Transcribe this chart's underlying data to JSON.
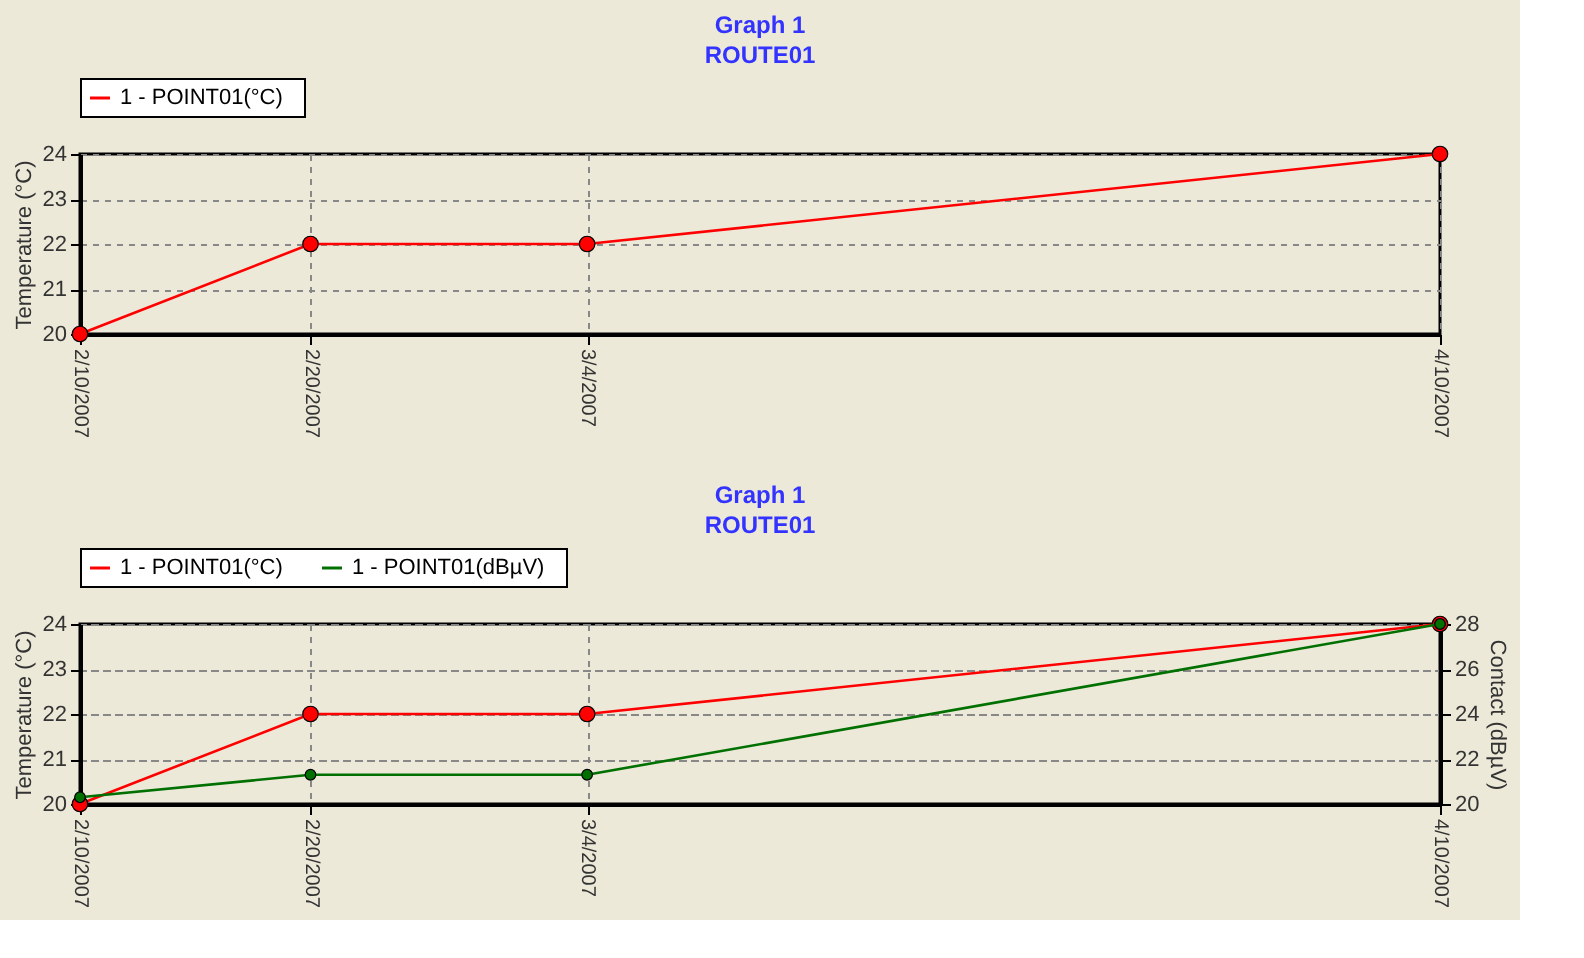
{
  "chart_data": [
    {
      "type": "line",
      "title": "Graph 1",
      "subtitle": "ROUTE01",
      "ylabel": "Temperature (°C)",
      "x": [
        "2007-02-10",
        "2007-02-20",
        "2007-03-04",
        "2007-04-10"
      ],
      "xlim": [
        "2007-02-10",
        "2007-04-10"
      ],
      "xticks": [
        {
          "value": "2007-02-10",
          "label": "2/10/2007"
        },
        {
          "value": "2007-02-20",
          "label": "2/20/2007"
        },
        {
          "value": "2007-03-04",
          "label": "3/4/2007"
        },
        {
          "value": "2007-04-10",
          "label": "4/10/2007"
        }
      ],
      "ylim": [
        20,
        24
      ],
      "yticks": [
        20,
        21,
        22,
        23,
        24
      ],
      "grid": true,
      "legend": "top",
      "marker": "circle",
      "line_style": "solid",
      "series": [
        {
          "name": "1  -  POINT01(°C)",
          "color": "#ff0000",
          "values": [
            20,
            22,
            22,
            24
          ]
        }
      ]
    },
    {
      "type": "line",
      "title": "Graph 1",
      "subtitle": "ROUTE01",
      "ylabel": "Temperature (°C)",
      "y2label": "Contact (dBµV)",
      "x": [
        "2007-02-10",
        "2007-02-20",
        "2007-03-04",
        "2007-04-10"
      ],
      "xlim": [
        "2007-02-10",
        "2007-04-10"
      ],
      "xticks": [
        {
          "value": "2007-02-10",
          "label": "2/10/2007"
        },
        {
          "value": "2007-02-20",
          "label": "2/20/2007"
        },
        {
          "value": "2007-03-04",
          "label": "3/4/2007"
        },
        {
          "value": "2007-04-10",
          "label": "4/10/2007"
        }
      ],
      "ylim": [
        20,
        24
      ],
      "yticks": [
        20,
        21,
        22,
        23,
        24
      ],
      "y2lim": [
        20,
        28
      ],
      "y2ticks": [
        20,
        22,
        24,
        26,
        28
      ],
      "grid": true,
      "legend": "top",
      "marker": "circle",
      "line_style": "solid",
      "series": [
        {
          "name": "1  -  POINT01(°C)",
          "color": "#ff0000",
          "values": [
            20,
            22,
            22,
            24
          ]
        },
        {
          "name": "1  -  POINT01(dBµV)",
          "color": "#007000",
          "values": [
            20.3,
            21.3,
            21.3,
            28
          ],
          "axis": "y2"
        }
      ]
    }
  ]
}
